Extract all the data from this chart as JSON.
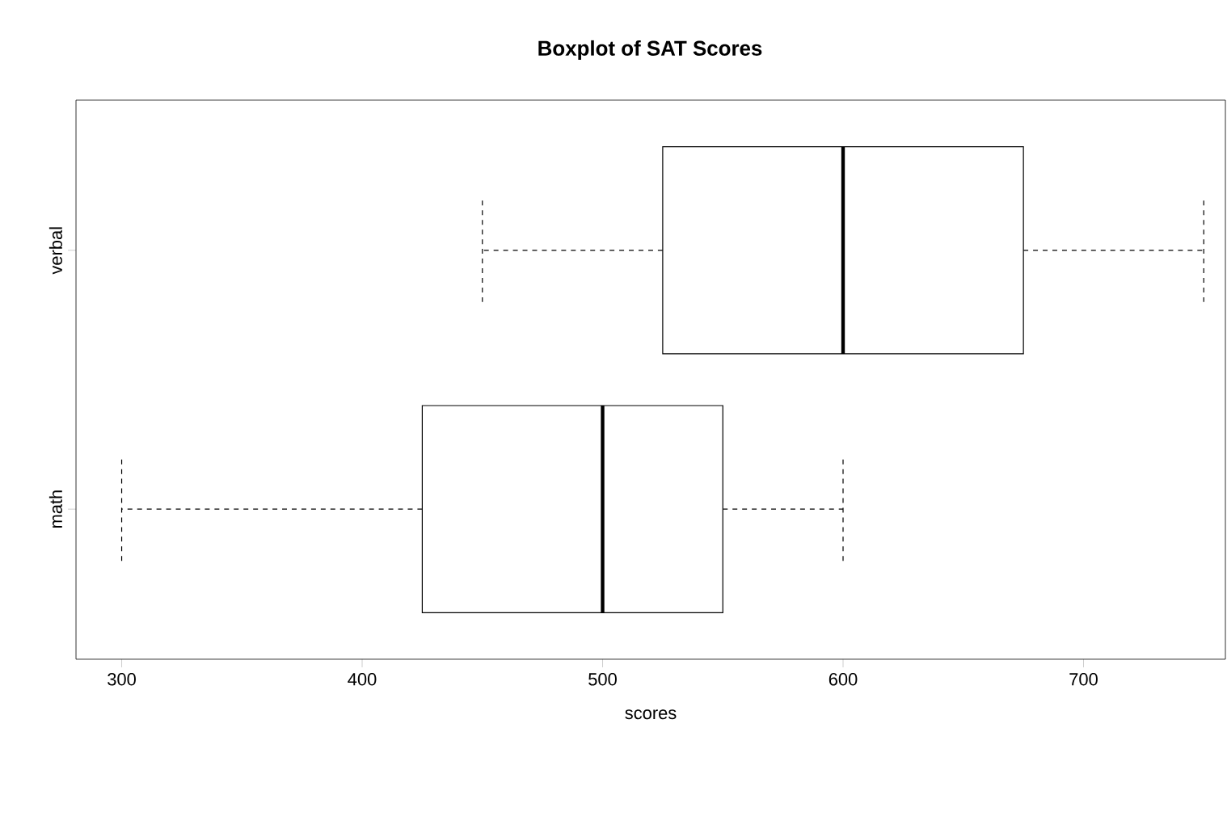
{
  "chart_data": {
    "type": "box",
    "title": "Boxplot of SAT Scores",
    "xlabel": "scores",
    "orientation": "horizontal",
    "categories": [
      "verbal",
      "math"
    ],
    "boxes": [
      {
        "low": 450,
        "q1": 525,
        "median": 600,
        "q3": 675,
        "high": 750
      },
      {
        "low": 300,
        "q1": 425,
        "median": 500,
        "q3": 550,
        "high": 600
      }
    ],
    "xlim": [
      281,
      759
    ],
    "xticks": [
      300,
      400,
      500,
      600,
      700
    ]
  }
}
